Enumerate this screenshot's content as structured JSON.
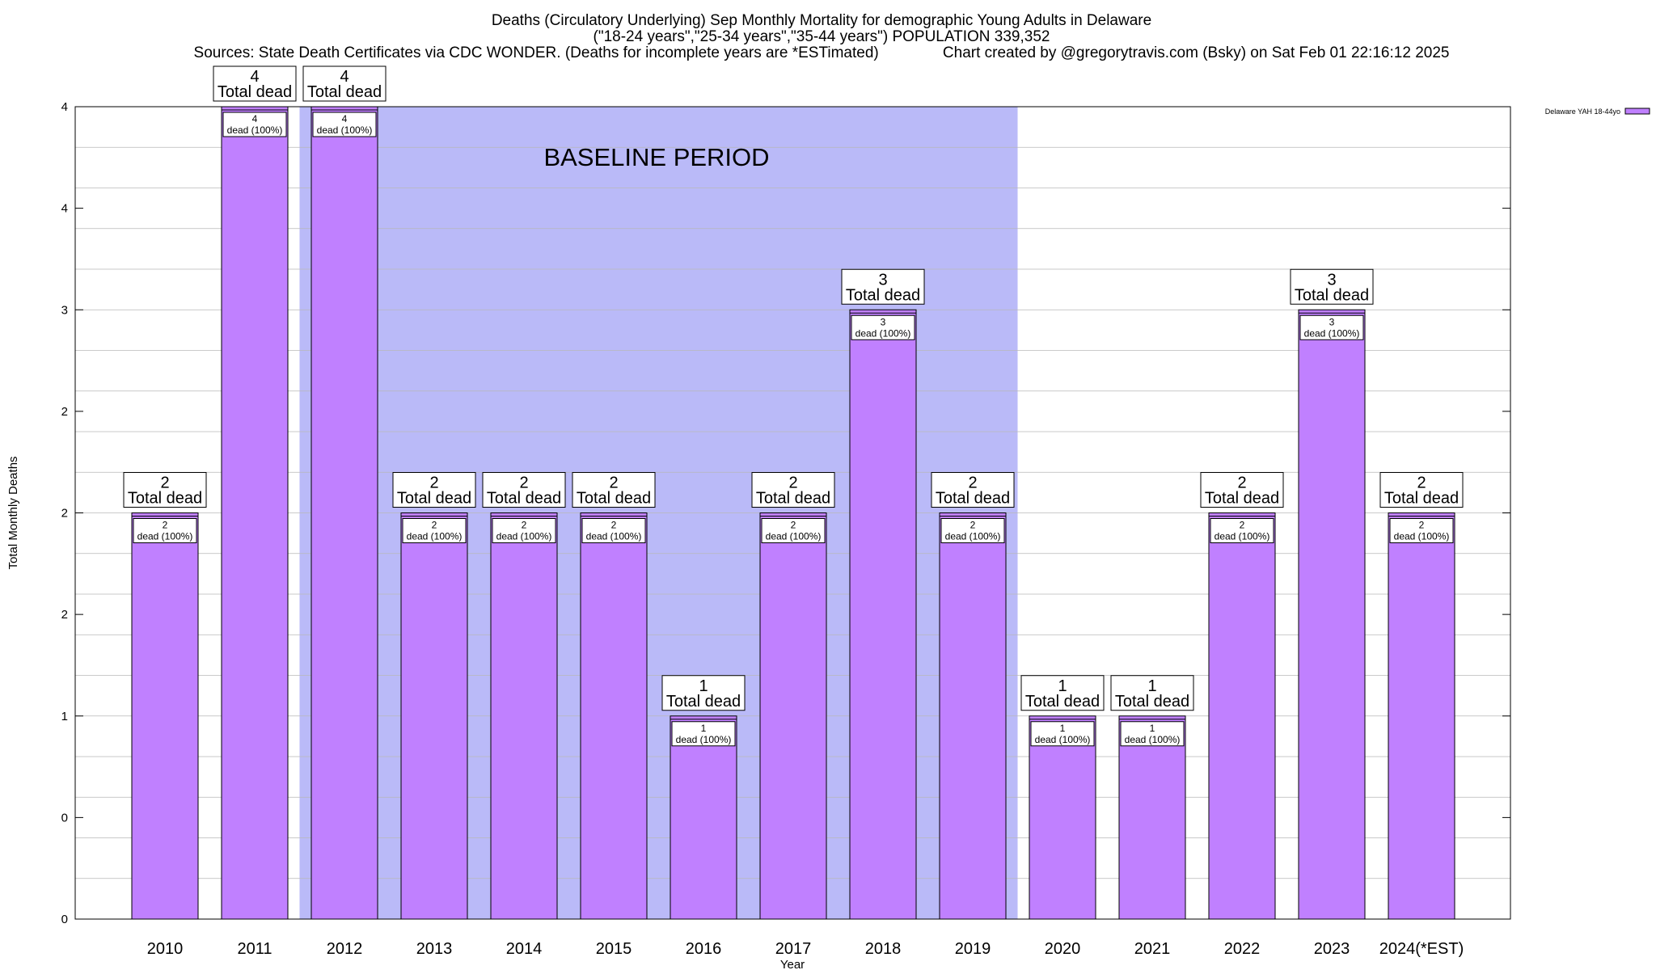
{
  "chart_data": {
    "type": "bar",
    "title_lines": [
      "Deaths (Circulatory Underlying) Sep Monthly Mortality for demographic Young Adults in Delaware",
      "(\"18-24 years\",\"25-34 years\",\"35-44 years\") POPULATION 339,352",
      "Sources: State Death Certificates via CDC WONDER. (Deaths for incomplete years are *ESTimated)               Chart created by @gregorytravis.com (Bsky) on Sat Feb 01 22:16:12 2025"
    ],
    "xlabel": "Year",
    "ylabel": "Total Monthly Deaths",
    "ylim": [
      0,
      4
    ],
    "y_tick_labels": [
      "0",
      "0",
      "1",
      "2",
      "2",
      "2",
      "3",
      "4",
      "4"
    ],
    "categories": [
      "2010",
      "2011",
      "2012",
      "2013",
      "2014",
      "2015",
      "2016",
      "2017",
      "2018",
      "2019",
      "2020",
      "2021",
      "2022",
      "2023",
      "2024(*EST)"
    ],
    "series": [
      {
        "name": "Delaware YAH 18-44yo",
        "color": "#c080ff",
        "values": [
          2,
          4,
          4,
          2,
          2,
          2,
          1,
          2,
          3,
          2,
          1,
          1,
          2,
          3,
          2
        ]
      }
    ],
    "total_label_suffix": "Total dead",
    "inner_label_suffix": "dead (100%)",
    "baseline": {
      "label": "BASELINE PERIOD",
      "start": "2012",
      "end": "2019",
      "color": "#babaf8"
    },
    "grid": true,
    "legend_position": "top-right"
  }
}
